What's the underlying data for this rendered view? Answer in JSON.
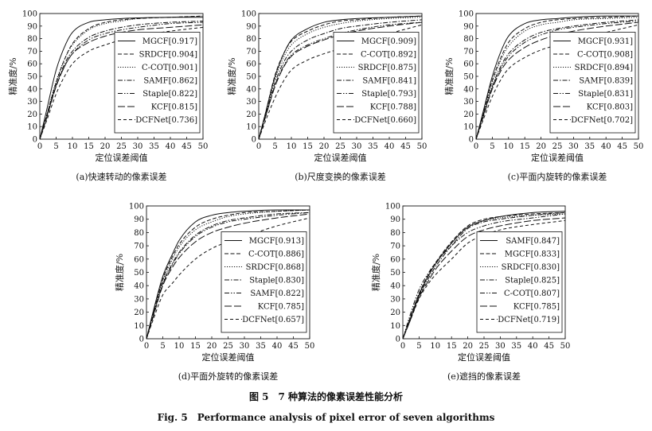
{
  "figure": {
    "caption_cn": "图 5　7 种算法的像素误差性能分析",
    "caption_en": "Fig. 5　Performance analysis of pixel error of seven algorithms"
  },
  "chart_data": [
    {
      "type": "line",
      "panel": "a",
      "subtitle": "(a)快速转动的像素误差",
      "xlabel": "定位误差阈值",
      "ylabel": "精准度/%",
      "xlim": [
        0,
        50
      ],
      "ylim": [
        0,
        100
      ],
      "xticks": [
        0,
        5,
        10,
        15,
        20,
        25,
        30,
        35,
        40,
        45,
        50
      ],
      "yticks": [
        0,
        10,
        20,
        30,
        40,
        50,
        60,
        70,
        80,
        90,
        100
      ],
      "legend_position": "right",
      "x": [
        0,
        2,
        5,
        8,
        10,
        15,
        20,
        25,
        30,
        40,
        50
      ],
      "series": [
        {
          "name": "MGCF[0.917]",
          "dash": "solid",
          "values": [
            0,
            22,
            55,
            76,
            85,
            93,
            95,
            96,
            96.5,
            97,
            97
          ]
        },
        {
          "name": "SRDCF[0.904]",
          "dash": "dashed",
          "values": [
            0,
            18,
            45,
            66,
            76,
            88,
            93,
            95,
            96,
            97,
            98
          ]
        },
        {
          "name": "C-COT[0.901]",
          "dash": "dotted",
          "values": [
            0,
            18,
            46,
            66,
            75,
            87,
            92,
            94,
            96,
            97,
            98
          ]
        },
        {
          "name": "SAMF[0.862]",
          "dash": "dashdot",
          "values": [
            0,
            17,
            43,
            62,
            70,
            81,
            86,
            89,
            91,
            93,
            94
          ]
        },
        {
          "name": "Staple[0.822]",
          "dash": "dashdotdot",
          "values": [
            0,
            17,
            42,
            60,
            68,
            79,
            84,
            87,
            89,
            92,
            93
          ]
        },
        {
          "name": "KCF[0.815]",
          "dash": "longdash",
          "values": [
            0,
            16,
            42,
            60,
            68,
            77,
            82,
            85,
            87,
            89,
            91
          ]
        },
        {
          "name": "DCFNet[0.736]",
          "dash": "mediumdash",
          "values": [
            0,
            14,
            36,
            52,
            60,
            70,
            75,
            79,
            82,
            86,
            89
          ]
        }
      ]
    },
    {
      "type": "line",
      "panel": "b",
      "subtitle": "(b)尺度变换的像素误差",
      "xlabel": "定位误差阈值",
      "ylabel": "精准度/%",
      "xlim": [
        0,
        50
      ],
      "ylim": [
        0,
        100
      ],
      "xticks": [
        0,
        5,
        10,
        15,
        20,
        25,
        30,
        35,
        40,
        45,
        50
      ],
      "yticks": [
        0,
        10,
        20,
        30,
        40,
        50,
        60,
        70,
        80,
        90,
        100
      ],
      "legend_position": "right",
      "x": [
        0,
        2,
        5,
        8,
        10,
        15,
        20,
        25,
        30,
        40,
        50
      ],
      "series": [
        {
          "name": "MGCF[0.909]",
          "dash": "solid",
          "values": [
            0,
            20,
            50,
            70,
            79,
            88,
            93,
            95,
            96,
            97,
            98
          ]
        },
        {
          "name": "C-COT[0.892]",
          "dash": "dashed",
          "values": [
            0,
            20,
            51,
            70,
            78,
            86,
            91,
            94,
            95,
            97,
            98
          ]
        },
        {
          "name": "SRDCF[0.875]",
          "dash": "dotted",
          "values": [
            0,
            19,
            48,
            67,
            75,
            84,
            89,
            92,
            94,
            96,
            97
          ]
        },
        {
          "name": "SAMF[0.841]",
          "dash": "dashdot",
          "values": [
            0,
            18,
            45,
            63,
            70,
            79,
            84,
            88,
            90,
            93,
            95
          ]
        },
        {
          "name": "Staple[0.793]",
          "dash": "dashdotdot",
          "values": [
            0,
            17,
            43,
            60,
            67,
            75,
            80,
            84,
            87,
            91,
            93
          ]
        },
        {
          "name": "KCF[0.788]",
          "dash": "longdash",
          "values": [
            0,
            17,
            42,
            59,
            66,
            74,
            79,
            83,
            86,
            90,
            93
          ]
        },
        {
          "name": "DCFNet[0.660]",
          "dash": "mediumdash",
          "values": [
            0,
            14,
            33,
            48,
            55,
            63,
            68,
            72,
            76,
            84,
            91
          ]
        }
      ]
    },
    {
      "type": "line",
      "panel": "c",
      "subtitle": "(c)平面内旋转的像素误差",
      "xlabel": "定位误差阈值",
      "ylabel": "精准度/%",
      "xlim": [
        0,
        50
      ],
      "ylim": [
        0,
        100
      ],
      "xticks": [
        0,
        5,
        10,
        15,
        20,
        25,
        30,
        35,
        40,
        45,
        50
      ],
      "yticks": [
        0,
        10,
        20,
        30,
        40,
        50,
        60,
        70,
        80,
        90,
        100
      ],
      "legend_position": "right",
      "x": [
        0,
        2,
        5,
        8,
        10,
        15,
        20,
        25,
        30,
        40,
        50
      ],
      "series": [
        {
          "name": "MGCF[0.931]",
          "dash": "solid",
          "values": [
            0,
            20,
            50,
            72,
            82,
            92,
            95,
            96,
            97,
            98,
            98
          ]
        },
        {
          "name": "C-COT[0.908]",
          "dash": "dashed",
          "values": [
            0,
            19,
            47,
            67,
            77,
            88,
            93,
            95,
            96,
            97,
            98
          ]
        },
        {
          "name": "SRDCF[0.894]",
          "dash": "dotted",
          "values": [
            0,
            18,
            45,
            65,
            74,
            86,
            91,
            93,
            95,
            96,
            97
          ]
        },
        {
          "name": "SAMF[0.839]",
          "dash": "dashdot",
          "values": [
            0,
            17,
            42,
            60,
            68,
            79,
            85,
            88,
            90,
            93,
            95
          ]
        },
        {
          "name": "Staple[0.831]",
          "dash": "dashdotdot",
          "values": [
            0,
            17,
            41,
            58,
            66,
            77,
            83,
            87,
            89,
            92,
            94
          ]
        },
        {
          "name": "KCF[0.803]",
          "dash": "longdash",
          "values": [
            0,
            16,
            40,
            56,
            63,
            73,
            79,
            83,
            86,
            90,
            93
          ]
        },
        {
          "name": "DCFNet[0.702]",
          "dash": "mediumdash",
          "values": [
            0,
            14,
            34,
            49,
            56,
            65,
            71,
            75,
            79,
            85,
            91
          ]
        }
      ]
    },
    {
      "type": "line",
      "panel": "d",
      "subtitle": "(d)平面外旋转的像素误差",
      "xlabel": "定位误差阈值",
      "ylabel": "精准度/%",
      "xlim": [
        0,
        50
      ],
      "ylim": [
        0,
        100
      ],
      "xticks": [
        0,
        5,
        10,
        15,
        20,
        25,
        30,
        35,
        40,
        45,
        50
      ],
      "yticks": [
        0,
        10,
        20,
        30,
        40,
        50,
        60,
        70,
        80,
        90,
        100
      ],
      "legend_position": "right",
      "x": [
        0,
        2,
        5,
        8,
        10,
        15,
        20,
        25,
        30,
        40,
        50
      ],
      "series": [
        {
          "name": "MGCF[0.913]",
          "dash": "solid",
          "values": [
            0,
            20,
            47,
            64,
            74,
            88,
            93,
            95,
            96,
            97,
            97
          ]
        },
        {
          "name": "C-COT[0.886]",
          "dash": "dashed",
          "values": [
            0,
            19,
            45,
            62,
            71,
            84,
            90,
            93,
            95,
            96,
            97
          ]
        },
        {
          "name": "SRDCF[0.868]",
          "dash": "dotted",
          "values": [
            0,
            18,
            44,
            60,
            69,
            82,
            88,
            92,
            94,
            96,
            97
          ]
        },
        {
          "name": "Staple[0.830]",
          "dash": "dashdot",
          "values": [
            0,
            17,
            42,
            57,
            65,
            78,
            85,
            89,
            91,
            94,
            95
          ]
        },
        {
          "name": "SAMF[0.822]",
          "dash": "dashdotdot",
          "values": [
            0,
            17,
            41,
            56,
            64,
            77,
            84,
            88,
            90,
            93,
            95
          ]
        },
        {
          "name": "KCF[0.785]",
          "dash": "longdash",
          "values": [
            0,
            16,
            40,
            54,
            61,
            73,
            80,
            84,
            87,
            91,
            94
          ]
        },
        {
          "name": "DCFNet[0.657]",
          "dash": "mediumdash",
          "values": [
            0,
            14,
            33,
            42,
            48,
            60,
            68,
            73,
            77,
            85,
            91
          ]
        }
      ]
    },
    {
      "type": "line",
      "panel": "e",
      "subtitle": "(e)遮挡的像素误差",
      "xlabel": "定位误差阈值",
      "ylabel": "精准度/%",
      "xlim": [
        0,
        50
      ],
      "ylim": [
        0,
        100
      ],
      "xticks": [
        0,
        5,
        10,
        15,
        20,
        25,
        30,
        35,
        40,
        45,
        50
      ],
      "yticks": [
        0,
        10,
        20,
        30,
        40,
        50,
        60,
        70,
        80,
        90,
        100
      ],
      "legend_position": "right",
      "x": [
        0,
        2,
        5,
        8,
        10,
        15,
        20,
        25,
        30,
        40,
        50
      ],
      "series": [
        {
          "name": "SAMF[0.847]",
          "dash": "solid",
          "values": [
            0,
            13,
            33,
            48,
            56,
            72,
            84,
            89,
            92,
            95,
            96
          ]
        },
        {
          "name": "MGCF[0.833]",
          "dash": "dashed",
          "values": [
            0,
            14,
            34,
            49,
            57,
            73,
            85,
            90,
            92,
            94,
            95
          ]
        },
        {
          "name": "SRDCF[0.830]",
          "dash": "dotted",
          "values": [
            0,
            14,
            34,
            48,
            56,
            72,
            84,
            89,
            91,
            93,
            94
          ]
        },
        {
          "name": "Staple[0.825]",
          "dash": "dashdot",
          "values": [
            0,
            13,
            32,
            46,
            54,
            70,
            83,
            88,
            90,
            93,
            95
          ]
        },
        {
          "name": "C-COT[0.807]",
          "dash": "dashdotdot",
          "values": [
            0,
            16,
            37,
            50,
            57,
            70,
            80,
            85,
            88,
            91,
            94
          ]
        },
        {
          "name": "KCF[0.785]",
          "dash": "longdash",
          "values": [
            0,
            12,
            31,
            44,
            52,
            66,
            77,
            82,
            85,
            89,
            91
          ]
        },
        {
          "name": "DCFNet[0.719]",
          "dash": "mediumdash",
          "values": [
            0,
            12,
            30,
            42,
            48,
            60,
            72,
            78,
            82,
            86,
            89
          ]
        }
      ]
    }
  ]
}
